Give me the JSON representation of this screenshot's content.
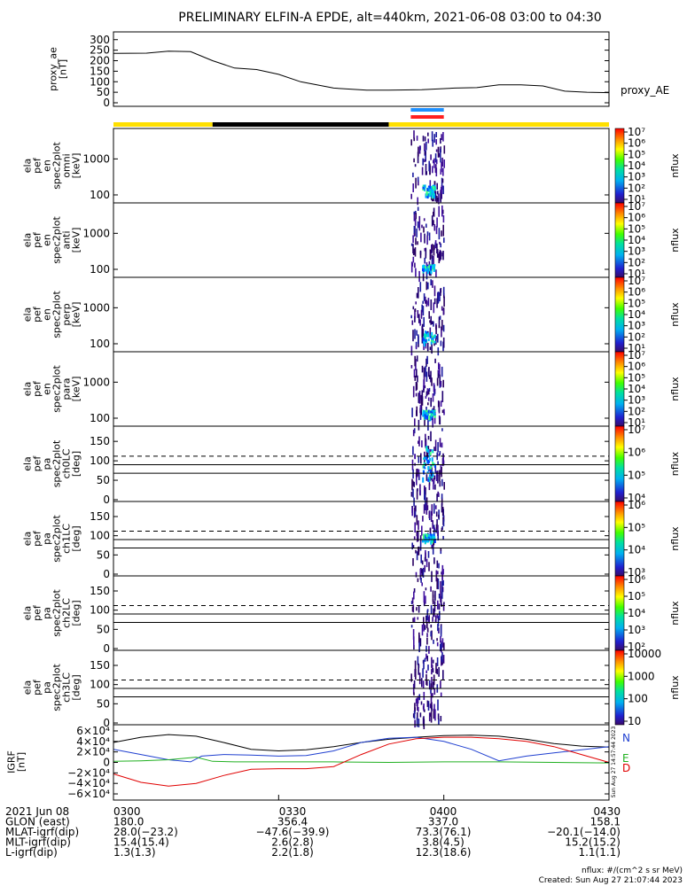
{
  "title": "PRELIMINARY ELFIN-A EPDE, alt=440km, 2021-06-08 03:00 to 04:30",
  "colors": {
    "bar_yellow": "#ffe000",
    "bar_black": "#000000",
    "mark_blue": "#1e90ff",
    "mark_red": "#ff2020",
    "trace_black": "#000000",
    "trace_blue": "#1f3fd0",
    "trace_green": "#20b020",
    "trace_red": "#e00000"
  },
  "chart_data": [
    {
      "type": "line",
      "name": "proxy_ae",
      "ylabel": [
        "proxy_ae",
        "[nT]"
      ],
      "legend": "proxy_AE",
      "ylim": [
        0,
        320
      ],
      "yticks": [
        "300",
        "250",
        "200",
        "150",
        "100",
        "50",
        "0"
      ],
      "ytick_values": [
        300,
        250,
        200,
        150,
        100,
        50,
        0
      ],
      "x_minutes": [
        0,
        6,
        10,
        14,
        18,
        22,
        26,
        30,
        34,
        40,
        46,
        50,
        56,
        62,
        66,
        70,
        74,
        78,
        82,
        86,
        90
      ],
      "values": [
        235,
        236,
        245,
        243,
        200,
        165,
        158,
        135,
        100,
        70,
        60,
        60,
        62,
        70,
        72,
        85,
        85,
        80,
        55,
        50,
        48
      ]
    },
    {
      "type": "table",
      "name": "region-bar",
      "segments": [
        {
          "from": 0,
          "to": 18,
          "color": "yellow"
        },
        {
          "from": 18,
          "to": 50,
          "color": "black"
        },
        {
          "from": 50,
          "to": 90,
          "color": "yellow"
        }
      ],
      "marks": [
        {
          "from": 54,
          "to": 60,
          "color": "blue"
        },
        {
          "from": 54,
          "to": 60,
          "color": "red"
        }
      ]
    },
    {
      "type": "heatmap",
      "name": "spec2plot-omni",
      "ylabel": [
        "ela",
        "pef",
        "en",
        "spec2plot",
        "omni",
        "[keV]"
      ],
      "yscale": "log",
      "yticks": [
        "1000",
        "100"
      ],
      "ytick_values": [
        1000,
        100
      ],
      "ylim": [
        60,
        7000
      ],
      "burst_minutes": [
        54,
        60
      ],
      "colorbar": {
        "label": "nflux",
        "ticks": [
          "10⁷",
          "10⁶",
          "10⁵",
          "10⁴",
          "10³",
          "10²",
          "10¹"
        ],
        "scale": "log"
      }
    },
    {
      "type": "heatmap",
      "name": "spec2plot-anti",
      "ylabel": [
        "ela",
        "pef",
        "en",
        "spec2plot",
        "anti",
        "[keV]"
      ],
      "yscale": "log",
      "yticks": [
        "1000",
        "100"
      ],
      "ytick_values": [
        1000,
        100
      ],
      "ylim": [
        60,
        7000
      ],
      "burst_minutes": [
        54,
        60
      ],
      "colorbar": {
        "label": "nflux",
        "ticks": [
          "10⁷",
          "10⁶",
          "10⁵",
          "10⁴",
          "10³",
          "10²",
          "10¹"
        ],
        "scale": "log"
      }
    },
    {
      "type": "heatmap",
      "name": "spec2plot-perp",
      "ylabel": [
        "ela",
        "pef",
        "en",
        "spec2plot",
        "perp",
        "[keV]"
      ],
      "yscale": "log",
      "yticks": [
        "1000",
        "100"
      ],
      "ytick_values": [
        1000,
        100
      ],
      "ylim": [
        60,
        7000
      ],
      "burst_minutes": [
        54,
        60
      ],
      "colorbar": {
        "label": "nflux",
        "ticks": [
          "10⁷",
          "10⁶",
          "10⁵",
          "10⁴",
          "10³",
          "10²",
          "10¹"
        ],
        "scale": "log"
      }
    },
    {
      "type": "heatmap",
      "name": "spec2plot-para",
      "ylabel": [
        "ela",
        "pef",
        "en",
        "spec2plot",
        "para",
        "[keV]"
      ],
      "yscale": "log",
      "yticks": [
        "1000",
        "100"
      ],
      "ytick_values": [
        1000,
        100
      ],
      "ylim": [
        60,
        7000
      ],
      "burst_minutes": [
        54,
        60
      ],
      "colorbar": {
        "label": "nflux",
        "ticks": [
          "10⁷",
          "10⁶",
          "10⁵",
          "10⁴",
          "10³",
          "10²",
          "10¹"
        ],
        "scale": "log"
      }
    },
    {
      "type": "heatmap",
      "name": "spec2plot-ch0LC",
      "ylabel": [
        "ela",
        "pef",
        "pa",
        "spec2plot",
        "ch0LC",
        "[deg]"
      ],
      "yticks": [
        "150",
        "100",
        "50",
        "0"
      ],
      "ytick_values": [
        150,
        100,
        50,
        0
      ],
      "ylim": [
        0,
        180
      ],
      "ref_lines": {
        "solid": [
          68,
          90
        ],
        "dashed": [
          112
        ]
      },
      "burst_minutes": [
        54,
        60
      ],
      "colorbar": {
        "label": "nflux",
        "ticks": [
          "10⁷",
          "10⁶",
          "10⁵",
          "10⁴"
        ],
        "scale": "log"
      }
    },
    {
      "type": "heatmap",
      "name": "spec2plot-ch1LC",
      "ylabel": [
        "ela",
        "pef",
        "pa",
        "spec2plot",
        "ch1LC",
        "[deg]"
      ],
      "yticks": [
        "150",
        "100",
        "50",
        "0"
      ],
      "ytick_values": [
        150,
        100,
        50,
        0
      ],
      "ylim": [
        0,
        180
      ],
      "ref_lines": {
        "solid": [
          68,
          90
        ],
        "dashed": [
          112
        ]
      },
      "burst_minutes": [
        54,
        60
      ],
      "colorbar": {
        "label": "nflux",
        "ticks": [
          "10⁶",
          "10⁵",
          "10⁴",
          "10³"
        ],
        "scale": "log"
      }
    },
    {
      "type": "heatmap",
      "name": "spec2plot-ch2LC",
      "ylabel": [
        "ela",
        "pef",
        "pa",
        "spec2plot",
        "ch2LC",
        "[deg]"
      ],
      "yticks": [
        "150",
        "100",
        "50",
        "0"
      ],
      "ytick_values": [
        150,
        100,
        50,
        0
      ],
      "ylim": [
        0,
        180
      ],
      "ref_lines": {
        "solid": [
          68,
          90
        ],
        "dashed": [
          112
        ]
      },
      "burst_minutes": [
        54,
        60
      ],
      "colorbar": {
        "label": "nflux",
        "ticks": [
          "10⁶",
          "10⁵",
          "10⁴",
          "10³",
          "10²"
        ],
        "scale": "log"
      }
    },
    {
      "type": "heatmap",
      "name": "spec2plot-ch3LC",
      "ylabel": [
        "ela",
        "pef",
        "pa",
        "spec2plot",
        "ch3LC",
        "[deg]"
      ],
      "yticks": [
        "150",
        "100",
        "50",
        "0"
      ],
      "ytick_values": [
        150,
        100,
        50,
        0
      ],
      "ylim": [
        0,
        180
      ],
      "ref_lines": {
        "solid": [
          68,
          90
        ],
        "dashed": [
          112
        ]
      },
      "burst_minutes": [
        54,
        60
      ],
      "colorbar": {
        "label": "nflux",
        "ticks": [
          "10000",
          "1000",
          "100",
          "10"
        ],
        "scale": "log"
      }
    },
    {
      "type": "line",
      "name": "IGRF",
      "ylabel": [
        "IGRF",
        "[nT]"
      ],
      "ylim": [
        -65000,
        65000
      ],
      "yticks": [
        "6×10⁴",
        "4×10⁴",
        "2×10⁴",
        "0",
        "−2×10⁴",
        "−4×10⁴",
        "−6×10⁴"
      ],
      "ytick_values": [
        60000,
        40000,
        20000,
        0,
        -20000,
        -40000,
        -60000
      ],
      "legend": [
        "N",
        "E",
        "D"
      ],
      "side_text": "Sun Aug 27 14:57:44 2023",
      "series": [
        {
          "color": "black",
          "x_minutes": [
            0,
            5,
            10,
            15,
            20,
            25,
            30,
            35,
            40,
            45,
            50,
            55,
            60,
            65,
            70,
            75,
            80,
            85,
            90
          ],
          "values": [
            38000,
            48000,
            53000,
            50000,
            38000,
            25000,
            22000,
            24000,
            30000,
            38000,
            44000,
            48000,
            51000,
            52000,
            50000,
            44000,
            36000,
            31000,
            29000
          ]
        },
        {
          "color": "blue",
          "x_minutes": [
            0,
            5,
            10,
            14,
            16,
            20,
            25,
            30,
            35,
            40,
            45,
            50,
            55,
            60,
            65,
            70,
            75,
            80,
            85,
            90
          ],
          "values": [
            25000,
            15000,
            5000,
            1000,
            12000,
            15000,
            14000,
            12000,
            13000,
            22000,
            38000,
            46000,
            48000,
            40000,
            25000,
            3000,
            12000,
            18000,
            24000,
            30000
          ]
        },
        {
          "color": "green",
          "x_minutes": [
            0,
            5,
            10,
            15,
            18,
            22,
            30,
            40,
            50,
            60,
            70,
            80,
            90
          ],
          "values": [
            2000,
            3000,
            5000,
            10000,
            2000,
            1000,
            1000,
            1000,
            0,
            1000,
            1000,
            0,
            -1000
          ]
        },
        {
          "color": "red",
          "x_minutes": [
            0,
            5,
            10,
            15,
            20,
            25,
            30,
            35,
            40,
            45,
            50,
            55,
            60,
            65,
            70,
            75,
            80,
            85,
            90
          ],
          "values": [
            -22000,
            -38000,
            -45000,
            -40000,
            -25000,
            -13000,
            -12000,
            -12000,
            -8000,
            15000,
            35000,
            45000,
            48000,
            48000,
            45000,
            40000,
            30000,
            15000,
            0
          ]
        }
      ]
    }
  ],
  "x_axis": {
    "ticks": [
      "0300",
      "0330",
      "0400",
      "0430"
    ],
    "tick_minutes": [
      0,
      30,
      60,
      90
    ]
  },
  "footer": {
    "rows": [
      {
        "label": "2021 Jun 08",
        "values": [
          "0300",
          "0330",
          "0400",
          "0430"
        ]
      },
      {
        "label": "GLON (east)",
        "values": [
          "180.0",
          "356.4",
          "337.0",
          "158.1"
        ]
      },
      {
        "label": "MLAT-igrf(dip)",
        "values": [
          "28.0(−23.2)",
          "−47.6(−39.9)",
          "73.3(76.1)",
          "−20.1(−14.0)"
        ]
      },
      {
        "label": "MLT-igrf(dip)",
        "values": [
          "15.4(15.4)",
          "2.6(2.8)",
          "3.8(4.5)",
          "15.2(15.2)"
        ]
      },
      {
        "label": "L-igrf(dip)",
        "values": [
          "1.3(1.3)",
          "2.2(1.8)",
          "12.3(18.6)",
          "1.1(1.1)"
        ]
      }
    ],
    "units_note": "nflux: #/(cm^2 s sr MeV)",
    "created": "Created: Sun Aug 27 21:07:44 2023"
  }
}
